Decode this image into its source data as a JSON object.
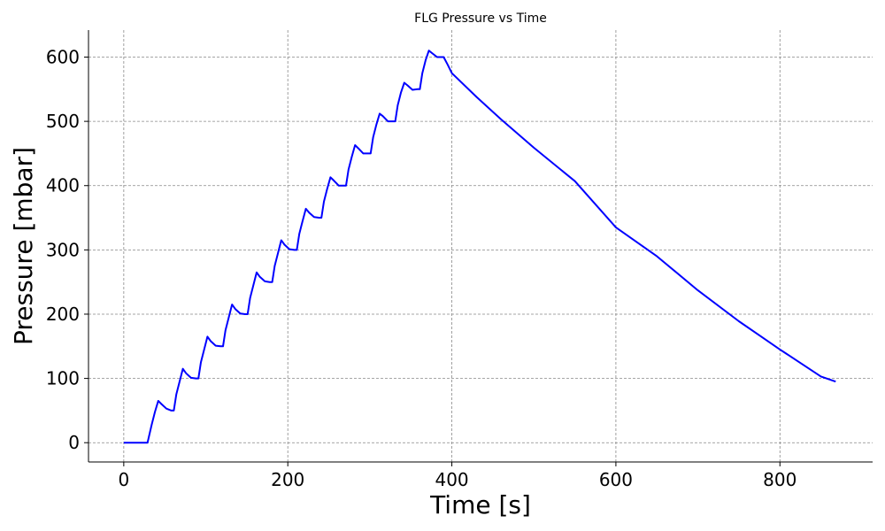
{
  "chart_data": {
    "type": "line",
    "title": "FLG Pressure vs Time",
    "xlabel": "Time [s]",
    "ylabel": "Pressure [mbar]",
    "xlim": [
      -43,
      913
    ],
    "ylim": [
      -30,
      642
    ],
    "xticks": [
      0,
      200,
      400,
      600,
      800
    ],
    "yticks": [
      0,
      100,
      200,
      300,
      400,
      500,
      600
    ],
    "grid": true,
    "colors": {
      "series": "#0000ff"
    },
    "series": [
      {
        "name": "",
        "points": [
          [
            0,
            0
          ],
          [
            29,
            0
          ],
          [
            34,
            28
          ],
          [
            38,
            48
          ],
          [
            42,
            65
          ],
          [
            46,
            60
          ],
          [
            52,
            53
          ],
          [
            58,
            50
          ],
          [
            61,
            50
          ],
          [
            64,
            75
          ],
          [
            68,
            95
          ],
          [
            72,
            115
          ],
          [
            76,
            108
          ],
          [
            82,
            101
          ],
          [
            88,
            100
          ],
          [
            91,
            100
          ],
          [
            94,
            125
          ],
          [
            98,
            145
          ],
          [
            102,
            165
          ],
          [
            106,
            158
          ],
          [
            112,
            151
          ],
          [
            118,
            150
          ],
          [
            121,
            150
          ],
          [
            124,
            175
          ],
          [
            128,
            195
          ],
          [
            132,
            215
          ],
          [
            136,
            208
          ],
          [
            142,
            201
          ],
          [
            148,
            200
          ],
          [
            151,
            200
          ],
          [
            154,
            225
          ],
          [
            158,
            245
          ],
          [
            162,
            265
          ],
          [
            166,
            258
          ],
          [
            172,
            251
          ],
          [
            178,
            250
          ],
          [
            181,
            250
          ],
          [
            184,
            275
          ],
          [
            188,
            295
          ],
          [
            192,
            315
          ],
          [
            196,
            308
          ],
          [
            202,
            301
          ],
          [
            208,
            300
          ],
          [
            211,
            300
          ],
          [
            214,
            325
          ],
          [
            218,
            345
          ],
          [
            222,
            364
          ],
          [
            226,
            358
          ],
          [
            232,
            351
          ],
          [
            238,
            350
          ],
          [
            241,
            350
          ],
          [
            244,
            375
          ],
          [
            248,
            395
          ],
          [
            252,
            413
          ],
          [
            256,
            408
          ],
          [
            262,
            400
          ],
          [
            268,
            400
          ],
          [
            271,
            400
          ],
          [
            274,
            425
          ],
          [
            278,
            445
          ],
          [
            282,
            463
          ],
          [
            286,
            458
          ],
          [
            292,
            450
          ],
          [
            298,
            450
          ],
          [
            301,
            450
          ],
          [
            304,
            475
          ],
          [
            308,
            495
          ],
          [
            312,
            512
          ],
          [
            316,
            508
          ],
          [
            322,
            500
          ],
          [
            328,
            500
          ],
          [
            331,
            500
          ],
          [
            334,
            525
          ],
          [
            338,
            545
          ],
          [
            342,
            560
          ],
          [
            346,
            556
          ],
          [
            352,
            549
          ],
          [
            358,
            550
          ],
          [
            361,
            550
          ],
          [
            364,
            575
          ],
          [
            368,
            595
          ],
          [
            372,
            610
          ],
          [
            376,
            606
          ],
          [
            382,
            600
          ],
          [
            387,
            600
          ],
          [
            390,
            600
          ],
          [
            395,
            588
          ],
          [
            400,
            575
          ],
          [
            430,
            538
          ],
          [
            460,
            503
          ],
          [
            500,
            459
          ],
          [
            550,
            407
          ],
          [
            600,
            335
          ],
          [
            650,
            290
          ],
          [
            700,
            237
          ],
          [
            750,
            189
          ],
          [
            800,
            145
          ],
          [
            850,
            103
          ],
          [
            868,
            95
          ]
        ]
      }
    ]
  }
}
